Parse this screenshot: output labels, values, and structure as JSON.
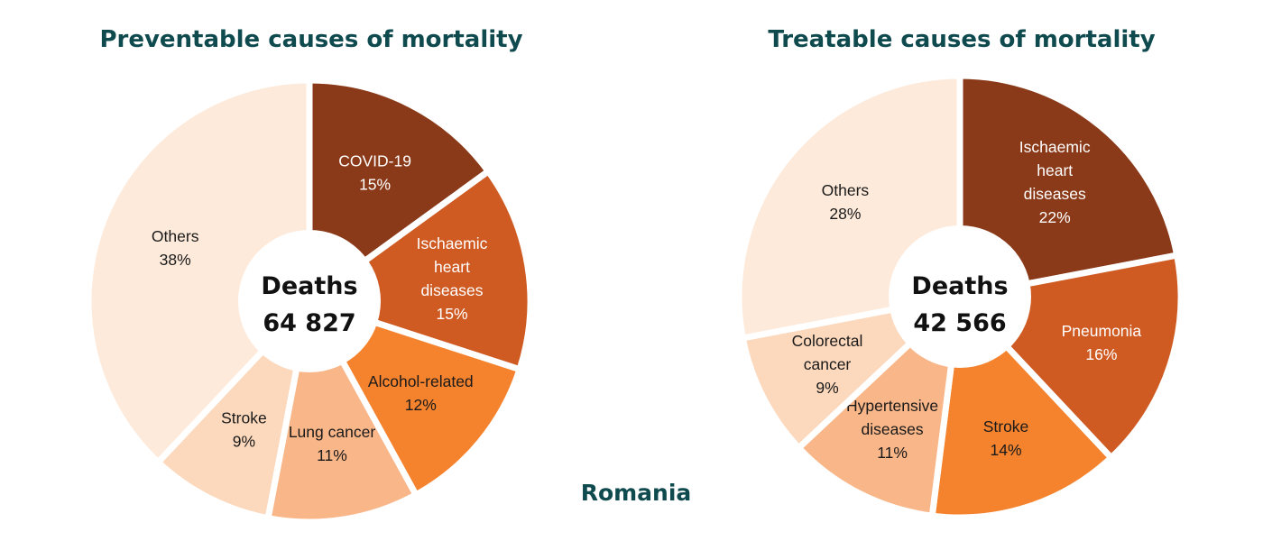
{
  "figure": {
    "country": "Romania"
  },
  "chart_data": [
    {
      "type": "pie",
      "variant": "donut",
      "title": "Preventable causes of mortality",
      "center_label": "Deaths",
      "center_value": "64 827",
      "slices": [
        {
          "label": [
            "COVID-19"
          ],
          "value": 15,
          "value_text": "15%",
          "color": "#8b3a19",
          "text_color": "#ffffff"
        },
        {
          "label": [
            "Ischaemic",
            "heart",
            "diseases"
          ],
          "value": 15,
          "value_text": "15%",
          "color": "#cf5b23",
          "text_color": "#ffffff"
        },
        {
          "label": [
            "Alcohol-related"
          ],
          "value": 12,
          "value_text": "12%",
          "color": "#f5832e",
          "text_color": "#1a1a1a"
        },
        {
          "label": [
            "Lung cancer"
          ],
          "value": 11,
          "value_text": "11%",
          "color": "#f9b688",
          "text_color": "#1a1a1a"
        },
        {
          "label": [
            "Stroke"
          ],
          "value": 9,
          "value_text": "9%",
          "color": "#fcd8bc",
          "text_color": "#1a1a1a"
        },
        {
          "label": [
            "Others"
          ],
          "value": 38,
          "value_text": "38%",
          "color": "#fdeada",
          "text_color": "#1a1a1a"
        }
      ]
    },
    {
      "type": "pie",
      "variant": "donut",
      "title": "Treatable causes of mortality",
      "center_label": "Deaths",
      "center_value": "42 566",
      "slices": [
        {
          "label": [
            "Ischaemic",
            "heart",
            "diseases"
          ],
          "value": 22,
          "value_text": "22%",
          "color": "#8b3a19",
          "text_color": "#ffffff"
        },
        {
          "label": [
            "Pneumonia"
          ],
          "value": 16,
          "value_text": "16%",
          "color": "#cf5b23",
          "text_color": "#ffffff"
        },
        {
          "label": [
            "Stroke"
          ],
          "value": 14,
          "value_text": "14%",
          "color": "#f5832e",
          "text_color": "#1a1a1a"
        },
        {
          "label": [
            "Hypertensive",
            "diseases"
          ],
          "value": 11,
          "value_text": "11%",
          "color": "#f9b688",
          "text_color": "#1a1a1a"
        },
        {
          "label": [
            "Colorectal",
            "cancer"
          ],
          "value": 9,
          "value_text": "9%",
          "color": "#fcd8bc",
          "text_color": "#1a1a1a"
        },
        {
          "label": [
            "Others"
          ],
          "value": 28,
          "value_text": "28%",
          "color": "#fdeada",
          "text_color": "#1a1a1a"
        }
      ]
    }
  ]
}
